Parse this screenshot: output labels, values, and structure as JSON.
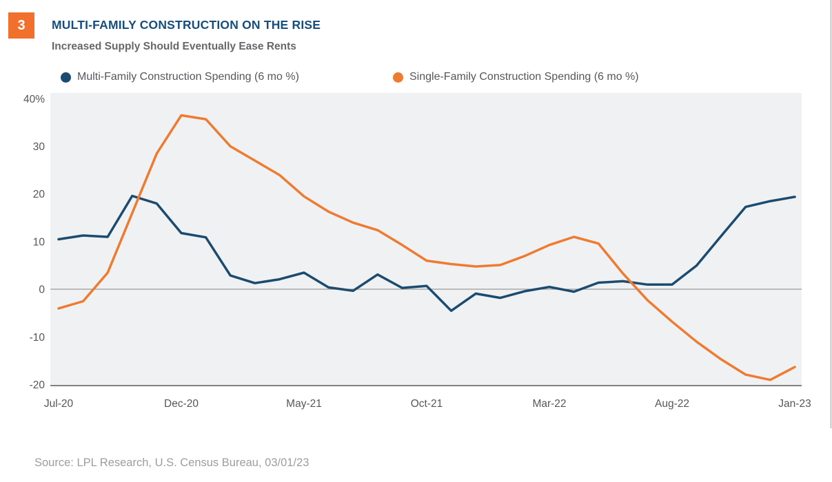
{
  "figure_number": "3",
  "header": {
    "title": "MULTI-FAMILY CONSTRUCTION ON THE RISE",
    "subtitle": "Increased Supply Should Eventually Ease Rents"
  },
  "source_note": "Source: LPL Research, U.S. Census Bureau, 03/01/23",
  "colors": {
    "badge_orange": "#F1702E",
    "title_navy": "#164E7F",
    "multi_family_navy": "#1C4B70",
    "single_family_orange": "#EE7B30",
    "plot_background": "#EFF1F2",
    "zero_line_gray": "#9A9A9A",
    "axis_line_gray": "#58595B",
    "label_gray": "#55565A",
    "source_gray": "#9C9DA1"
  },
  "chart_data": {
    "type": "line",
    "title": "MULTI-FAMILY CONSTRUCTION ON THE RISE",
    "subtitle": "Increased Supply Should Eventually Ease Rents",
    "xlabel": "",
    "ylabel": "",
    "x": [
      "Jul-20",
      "Aug-20",
      "Sep-20",
      "Oct-20",
      "Nov-20",
      "Dec-20",
      "Jan-21",
      "Feb-21",
      "Mar-21",
      "Apr-21",
      "May-21",
      "Jun-21",
      "Jul-21",
      "Aug-21",
      "Sep-21",
      "Oct-21",
      "Nov-21",
      "Dec-21",
      "Jan-22",
      "Feb-22",
      "Mar-22",
      "Apr-22",
      "May-22",
      "Jun-22",
      "Jul-22",
      "Aug-22",
      "Sep-22",
      "Oct-22",
      "Nov-22",
      "Dec-22",
      "Jan-23"
    ],
    "x_tick_indices": [
      0,
      5,
      10,
      15,
      20,
      25,
      30
    ],
    "x_tick_labels": [
      "Jul-20",
      "Dec-20",
      "May-21",
      "Oct-21",
      "Mar-22",
      "Aug-22",
      "Jan-23"
    ],
    "y_ticks": [
      40,
      30,
      20,
      10,
      0,
      -10,
      -20
    ],
    "y_tick_labels": [
      "40%",
      "30",
      "20",
      "10",
      "0",
      "-10",
      "-20"
    ],
    "ylim": [
      -20.2,
      41.2
    ],
    "grid": false,
    "zero_line": true,
    "legend_position": "top",
    "series": [
      {
        "name": "Multi-Family Construction Spending (6 mo %)",
        "color": "#1C4B70",
        "values": [
          10.5,
          11.3,
          11.0,
          19.6,
          18.0,
          11.8,
          10.9,
          2.9,
          1.3,
          2.1,
          3.5,
          0.4,
          -0.3,
          3.1,
          0.3,
          0.7,
          -4.5,
          -0.9,
          -1.8,
          -0.4,
          0.5,
          -0.5,
          1.4,
          1.7,
          1.0,
          1.0,
          5.0,
          11.2,
          17.3,
          18.5,
          19.4
        ]
      },
      {
        "name": "Single-Family Construction Spending (6 mo %)",
        "color": "#EE7B30",
        "values": [
          -4.0,
          -2.5,
          3.5,
          16.0,
          28.5,
          36.5,
          35.7,
          30.0,
          27.0,
          24.0,
          19.5,
          16.3,
          14.0,
          12.4,
          9.3,
          6.0,
          5.3,
          4.8,
          5.1,
          7.0,
          9.3,
          11.0,
          9.6,
          3.3,
          -2.3,
          -6.8,
          -11.0,
          -14.7,
          -17.9,
          -19.0,
          -16.3
        ]
      }
    ]
  }
}
